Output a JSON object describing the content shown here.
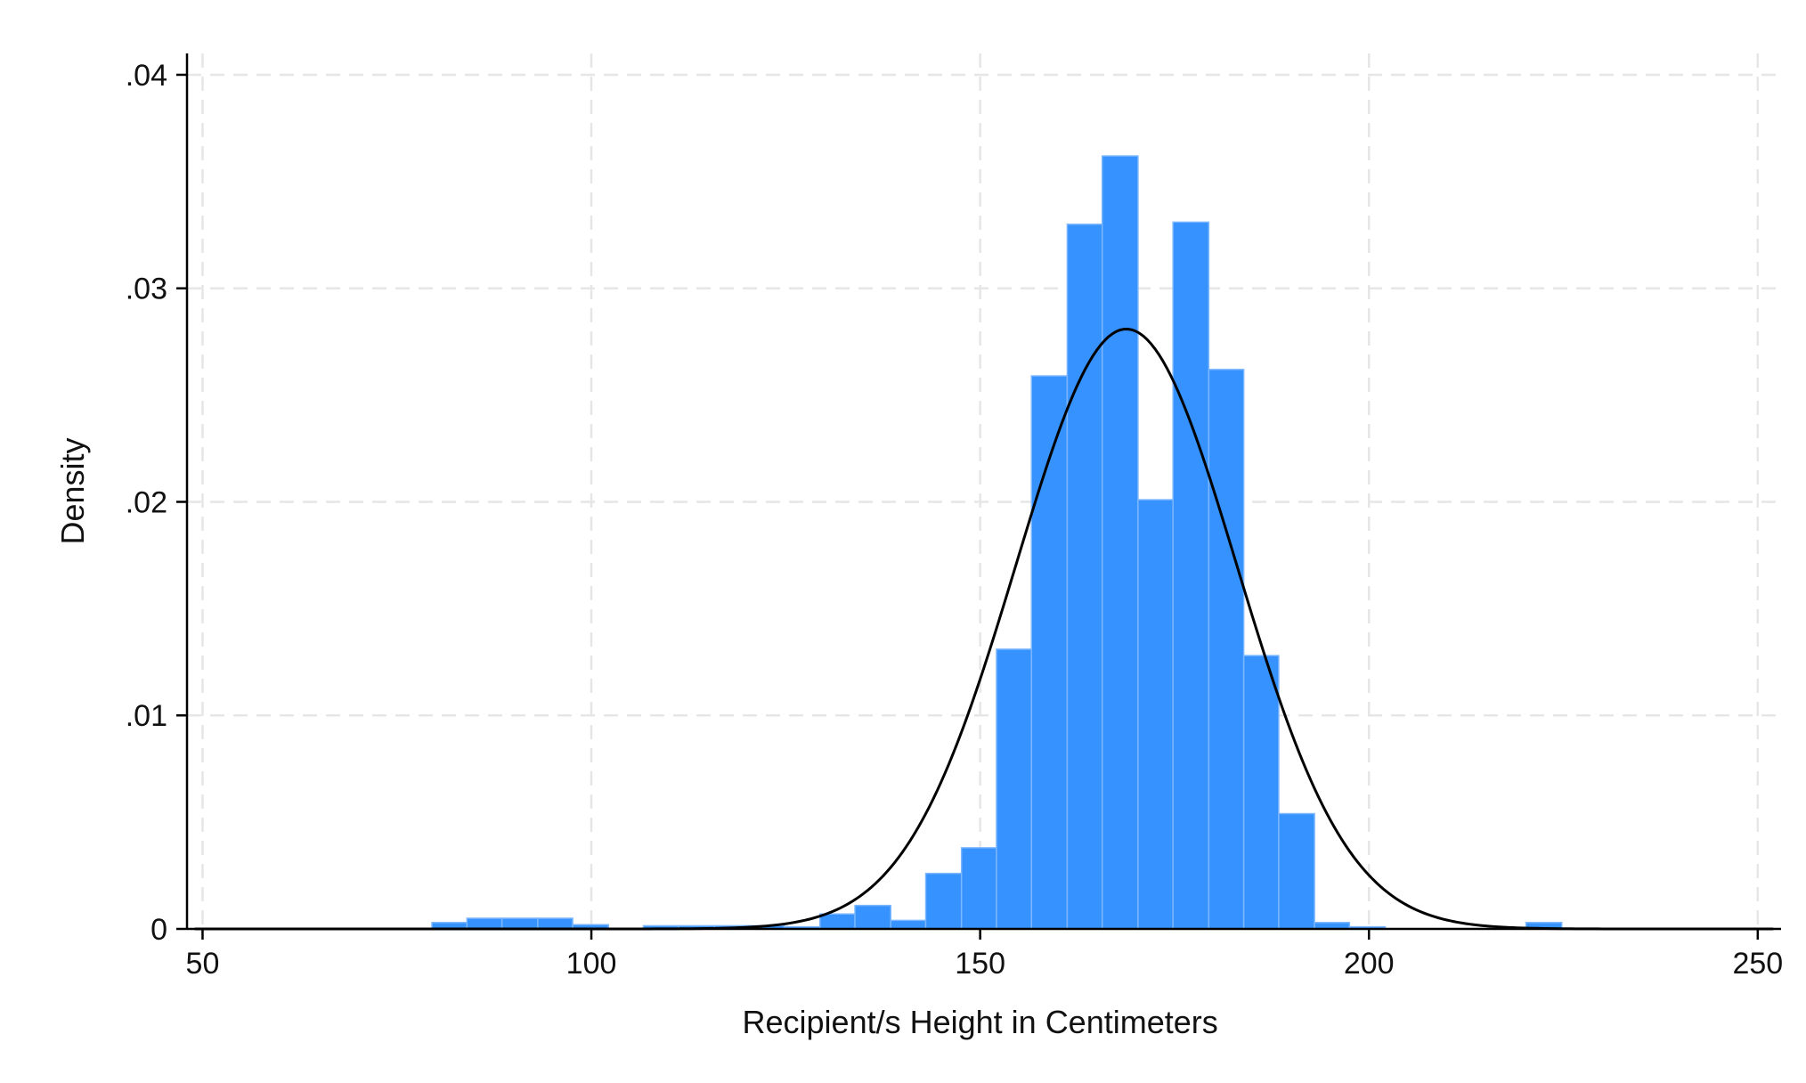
{
  "chart_data": {
    "type": "bar",
    "title": "",
    "xlabel": "Recipient/s Height in Centimeters",
    "ylabel": "Density",
    "xlim": [
      48,
      253
    ],
    "ylim": [
      0,
      0.041
    ],
    "x_ticks": [
      50,
      100,
      150,
      200,
      250
    ],
    "x_tick_labels": [
      "50",
      "100",
      "150",
      "200",
      "250"
    ],
    "y_ticks": [
      0,
      0.01,
      0.02,
      0.03,
      0.04
    ],
    "y_tick_labels": [
      "0",
      ".01",
      ".02",
      ".03",
      ".04"
    ],
    "grid": true,
    "grid_style": "dashed",
    "bar_color": "#3592fe",
    "bins": [
      {
        "x0": 79.5,
        "x1": 84.0,
        "density": 0.0003
      },
      {
        "x0": 84.0,
        "x1": 88.5,
        "density": 0.0005
      },
      {
        "x0": 88.5,
        "x1": 93.1,
        "density": 0.0005
      },
      {
        "x0": 93.1,
        "x1": 97.6,
        "density": 0.0005
      },
      {
        "x0": 97.6,
        "x1": 102.2,
        "density": 0.0002
      },
      {
        "x0": 106.7,
        "x1": 111.2,
        "density": 0.00015
      },
      {
        "x0": 111.2,
        "x1": 115.8,
        "density": 0.00015
      },
      {
        "x0": 115.8,
        "x1": 120.3,
        "density": 0.00015
      },
      {
        "x0": 120.3,
        "x1": 124.8,
        "density": 0.00015
      },
      {
        "x0": 124.8,
        "x1": 129.4,
        "density": 0.0001
      },
      {
        "x0": 129.4,
        "x1": 133.9,
        "density": 0.0007
      },
      {
        "x0": 133.9,
        "x1": 138.5,
        "density": 0.0011
      },
      {
        "x0": 138.5,
        "x1": 143.0,
        "density": 0.0004
      },
      {
        "x0": 143.0,
        "x1": 147.6,
        "density": 0.0026
      },
      {
        "x0": 147.6,
        "x1": 152.1,
        "density": 0.0038
      },
      {
        "x0": 152.1,
        "x1": 156.6,
        "density": 0.0131
      },
      {
        "x0": 156.6,
        "x1": 161.2,
        "density": 0.0259
      },
      {
        "x0": 161.2,
        "x1": 165.7,
        "density": 0.033
      },
      {
        "x0": 165.7,
        "x1": 170.3,
        "density": 0.0362
      },
      {
        "x0": 170.3,
        "x1": 174.8,
        "density": 0.0201
      },
      {
        "x0": 174.8,
        "x1": 179.4,
        "density": 0.0331
      },
      {
        "x0": 179.4,
        "x1": 183.9,
        "density": 0.0262
      },
      {
        "x0": 183.9,
        "x1": 188.4,
        "density": 0.0128
      },
      {
        "x0": 188.4,
        "x1": 193.0,
        "density": 0.0054
      },
      {
        "x0": 193.0,
        "x1": 197.5,
        "density": 0.0003
      },
      {
        "x0": 197.5,
        "x1": 202.1,
        "density": 0.0001
      },
      {
        "x0": 220.2,
        "x1": 224.8,
        "density": 0.0003
      }
    ],
    "overlay_curve": {
      "type": "normal_density",
      "mean": 168.8,
      "sd": 14.2,
      "color": "#000000"
    }
  }
}
